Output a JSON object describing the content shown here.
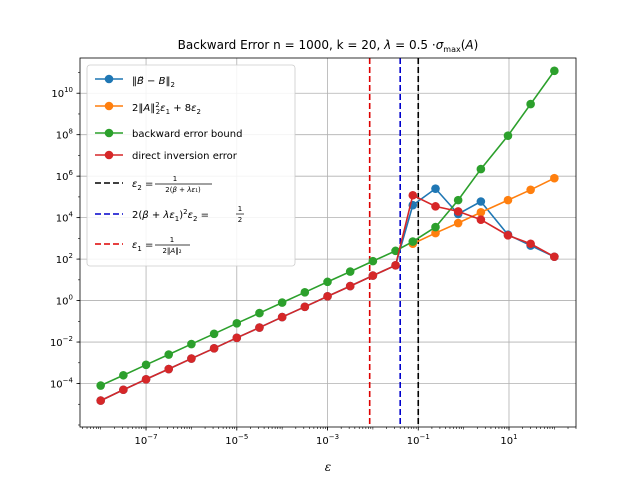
{
  "chart_data": {
    "type": "line",
    "title": "Backward Error n = 1000, k = 20, λ = 0.5 ·σmax(A)",
    "xlabel": "ε",
    "ylabel": "",
    "xscale": "log",
    "yscale": "log",
    "xlim": [
      3.5e-09,
      300
    ],
    "ylim": [
      8e-07,
      500000000000.0
    ],
    "grid": true,
    "legend_position": "top-left",
    "x_tick_labels": [
      "10^-7",
      "10^-5",
      "10^-3",
      "10^-1",
      "10^1"
    ],
    "y_tick_labels": [
      "10^-4",
      "10^-2",
      "10^0",
      "10^2",
      "10^4",
      "10^6",
      "10^8",
      "10^10"
    ],
    "x": [
      1e-08,
      3.16e-08,
      1e-07,
      3.16e-07,
      1e-06,
      3.16e-06,
      1e-05,
      3.16e-05,
      0.0001,
      0.000316,
      0.001,
      0.00316,
      0.01,
      0.0316,
      0.0758,
      0.24,
      0.758,
      2.4,
      9.5,
      30,
      100
    ],
    "series": [
      {
        "name": "‖B̃ − B‖₂",
        "color": "#1f77b4",
        "values": [
          1.5e-05,
          5e-05,
          0.00016,
          0.0005,
          0.0016,
          0.005,
          0.016,
          0.05,
          0.16,
          0.5,
          1.6,
          5,
          16,
          50,
          40000,
          250000,
          15000,
          60000,
          1500,
          450,
          130
        ]
      },
      {
        "name": "2‖A‖₂²ε₁ + 8ε₂",
        "color": "#ff7f0e",
        "values": [
          null,
          null,
          null,
          null,
          null,
          null,
          null,
          null,
          null,
          null,
          null,
          null,
          null,
          null,
          550,
          1800,
          5500,
          18000,
          70000,
          220000,
          800000
        ]
      },
      {
        "name": "backward error  bound",
        "color": "#2ca02c",
        "values": [
          8e-05,
          0.00025,
          0.0008,
          0.0025,
          0.008,
          0.025,
          0.08,
          0.25,
          0.8,
          2.5,
          8,
          25,
          80,
          250,
          700,
          3500,
          70000,
          2200000.0,
          90000000.0,
          3000000000.0,
          120000000000.0
        ]
      },
      {
        "name": "direct inversion error",
        "color": "#d62728",
        "values": [
          1.5e-05,
          5e-05,
          0.00016,
          0.0005,
          0.0016,
          0.005,
          0.016,
          0.05,
          0.16,
          0.5,
          1.6,
          5,
          16,
          50,
          120000,
          35000,
          20000,
          8000,
          1400,
          550,
          130
        ]
      }
    ],
    "vlines": [
      {
        "x": 0.1,
        "color": "#000000",
        "label": "ε₂ = 1 / (2(β + λε₁))"
      },
      {
        "x": 0.04,
        "color": "#0000cc",
        "label": "2(β + λε₁)²ε₂ = 1/2"
      },
      {
        "x": 0.0085,
        "color": "#dd0000",
        "label": "ε₁ = 1 / (2‖A‖₂)"
      }
    ]
  }
}
